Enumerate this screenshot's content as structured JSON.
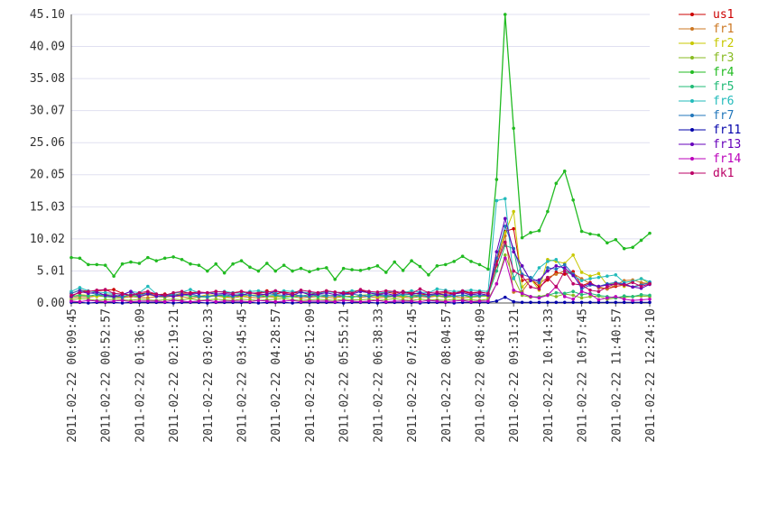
{
  "chart_data": {
    "type": "line",
    "categories": [
      "2011-02-22 00:09:45",
      null,
      null,
      null,
      "2011-02-22 00:52:57",
      null,
      null,
      null,
      "2011-02-22 01:36:09",
      null,
      null,
      null,
      "2011-02-22 02:19:21",
      null,
      null,
      null,
      "2011-02-22 03:02:33",
      null,
      null,
      null,
      "2011-02-22 03:45:45",
      null,
      null,
      null,
      "2011-02-22 04:28:57",
      null,
      null,
      null,
      "2011-02-22 05:12:09",
      null,
      null,
      null,
      "2011-02-22 05:55:21",
      null,
      null,
      null,
      "2011-02-22 06:38:33",
      null,
      null,
      null,
      "2011-02-22 07:21:45",
      null,
      null,
      null,
      "2011-02-22 08:04:57",
      null,
      null,
      null,
      "2011-02-22 08:48:09",
      null,
      null,
      null,
      "2011-02-22 09:31:21",
      null,
      null,
      null,
      "2011-02-22 10:14:33",
      null,
      null,
      null,
      "2011-02-22 10:57:45",
      null,
      null,
      null,
      "2011-02-22 11:40:57",
      null,
      null,
      null,
      "2011-02-22 12:24:10"
    ],
    "ylim": [
      0,
      45.1
    ],
    "yticks": [
      {
        "value": 0,
        "label": "0.00"
      },
      5.01,
      10.02,
      15.03,
      20.05,
      25.06,
      30.07,
      35.08,
      40.09,
      {
        "value": 45.1,
        "label": "45.10"
      }
    ],
    "grid": true,
    "legend": "right",
    "series": [
      {
        "name": "us1",
        "color": "#cc0000",
        "values": [
          1.5,
          2.0,
          1.8,
          1.9,
          2.0,
          2.1,
          1.5,
          1.2,
          1.4,
          1.6,
          1.3,
          1.4,
          1.2,
          1.5,
          1.6,
          1.7,
          1.5,
          1.8,
          1.7,
          1.6,
          1.8,
          1.5,
          1.6,
          1.9,
          1.4,
          1.7,
          1.5,
          1.8,
          1.3,
          1.6,
          1.9,
          1.7,
          1.5,
          1.8,
          2.0,
          1.6,
          1.4,
          1.7,
          1.5,
          1.8,
          1.6,
          1.4,
          1.3,
          1.5,
          1.6,
          1.4,
          1.8,
          1.5,
          1.7,
          1.5,
          6.5,
          11.2,
          11.6,
          3.5,
          3.8,
          2.5,
          3.6,
          4.8,
          4.5,
          4.9,
          2.7,
          3.2,
          2.4,
          2.2,
          2.6,
          2.8,
          2.5,
          2.9,
          3.1
        ]
      },
      {
        "name": "fr1",
        "color": "#cc7722",
        "values": [
          0.8,
          1.0,
          0.9,
          1.1,
          1.0,
          0.9,
          0.8,
          1.0,
          0.9,
          0.8,
          1.0,
          0.9,
          1.1,
          1.0,
          0.8,
          0.9,
          1.0,
          1.1,
          0.9,
          0.8,
          1.0,
          0.9,
          0.8,
          1.0,
          0.9,
          1.1,
          1.0,
          0.8,
          0.9,
          1.0,
          0.9,
          0.8,
          1.0,
          1.1,
          0.9,
          1.0,
          0.8,
          0.9,
          1.0,
          0.9,
          0.8,
          1.0,
          0.9,
          1.1,
          0.9,
          1.0,
          0.8,
          0.9,
          1.0,
          1.2,
          5.8,
          10.5,
          1.7,
          1.8,
          3.6,
          3.0,
          4.0,
          4.5,
          5.0,
          4.6,
          3.8,
          3.0,
          2.5,
          2.2,
          2.8,
          3.5,
          3.6,
          3.2,
          3.0
        ]
      },
      {
        "name": "fr2",
        "color": "#c8c800",
        "values": [
          1.0,
          1.3,
          1.2,
          1.0,
          1.4,
          1.1,
          0.9,
          1.2,
          1.0,
          1.3,
          1.1,
          1.0,
          1.2,
          1.4,
          1.1,
          1.0,
          1.3,
          1.2,
          0.9,
          1.1,
          1.0,
          1.2,
          1.3,
          1.1,
          1.0,
          0.9,
          1.2,
          1.1,
          1.0,
          1.3,
          1.2,
          1.0,
          1.1,
          0.9,
          1.2,
          1.3,
          1.0,
          1.1,
          1.2,
          1.0,
          1.1,
          1.3,
          1.0,
          1.2,
          1.1,
          1.0,
          1.2,
          0.9,
          1.1,
          1.0,
          7.0,
          11.0,
          14.3,
          2.5,
          3.8,
          2.0,
          6.8,
          6.5,
          6.2,
          7.5,
          4.8,
          4.2,
          4.6,
          2.8,
          3.2,
          2.6,
          3.4,
          3.8,
          3.0
        ]
      },
      {
        "name": "fr3",
        "color": "#88bb22",
        "values": [
          0.5,
          0.7,
          0.6,
          0.4,
          0.5,
          0.6,
          0.5,
          0.4,
          0.6,
          0.5,
          0.4,
          0.5,
          0.6,
          0.5,
          0.7,
          0.4,
          0.5,
          0.6,
          0.5,
          0.4,
          0.6,
          0.5,
          0.4,
          0.5,
          0.6,
          0.7,
          0.5,
          0.4,
          0.5,
          0.6,
          0.5,
          0.4,
          0.6,
          0.5,
          0.5,
          0.6,
          0.4,
          0.5,
          0.7,
          0.5,
          0.4,
          0.6,
          0.5,
          0.5,
          0.4,
          0.6,
          0.5,
          0.5,
          0.4,
          0.6,
          3.0,
          7.5,
          4.0,
          1.2,
          0.9,
          1.0,
          1.3,
          1.0,
          1.4,
          1.2,
          0.8,
          1.0,
          1.1,
          0.6,
          0.8,
          0.9,
          1.0,
          1.1,
          1.0
        ]
      },
      {
        "name": "fr4",
        "color": "#22bb22",
        "values": [
          7.1,
          7.0,
          6.0,
          6.0,
          5.9,
          4.2,
          6.1,
          6.4,
          6.2,
          7.1,
          6.6,
          7.0,
          7.2,
          6.8,
          6.1,
          5.9,
          5.0,
          6.1,
          4.7,
          6.1,
          6.6,
          5.6,
          5.0,
          6.2,
          5.0,
          5.9,
          5.0,
          5.4,
          4.9,
          5.3,
          5.5,
          3.7,
          5.4,
          5.2,
          5.1,
          5.4,
          5.8,
          4.8,
          6.4,
          5.1,
          6.6,
          5.7,
          4.4,
          5.8,
          6.0,
          6.5,
          7.3,
          6.5,
          6.0,
          5.3,
          19.3,
          45.1,
          27.3,
          10.2,
          11.0,
          11.3,
          14.3,
          18.7,
          20.6,
          16.1,
          11.2,
          10.8,
          10.6,
          9.4,
          9.9,
          8.5,
          8.7,
          9.8,
          10.9
        ]
      },
      {
        "name": "fr5",
        "color": "#22bb77",
        "values": [
          1.0,
          1.2,
          1.1,
          1.3,
          1.0,
          0.9,
          1.1,
          1.2,
          1.0,
          1.4,
          1.1,
          1.0,
          1.2,
          1.3,
          1.1,
          1.0,
          0.9,
          1.2,
          1.1,
          1.0,
          1.2,
          1.3,
          1.0,
          1.1,
          1.2,
          0.9,
          1.0,
          1.1,
          1.3,
          1.0,
          1.1,
          1.2,
          1.0,
          0.9,
          1.1,
          1.3,
          1.2,
          1.0,
          1.1,
          1.2,
          1.0,
          1.1,
          1.3,
          1.2,
          1.0,
          1.1,
          1.2,
          1.0,
          1.1,
          1.2,
          5.0,
          9.0,
          8.5,
          1.5,
          1.0,
          0.9,
          1.2,
          1.6,
          1.5,
          1.8,
          1.3,
          1.5,
          1.2,
          1.0,
          0.8,
          1.1,
          1.0,
          1.3,
          1.2
        ]
      },
      {
        "name": "fr6",
        "color": "#22bbbb",
        "values": [
          1.8,
          2.4,
          1.9,
          1.7,
          1.6,
          1.5,
          1.3,
          1.8,
          1.6,
          2.6,
          1.4,
          1.2,
          1.5,
          1.7,
          2.1,
          1.6,
          1.5,
          1.7,
          1.8,
          1.6,
          1.5,
          1.8,
          1.9,
          1.7,
          1.6,
          1.9,
          1.8,
          1.7,
          1.6,
          1.5,
          1.8,
          1.6,
          1.7,
          1.9,
          1.8,
          1.6,
          1.5,
          1.7,
          1.8,
          1.6,
          1.9,
          1.7,
          1.6,
          2.2,
          2.0,
          1.8,
          1.9,
          2.0,
          1.9,
          1.8,
          16.0,
          16.3,
          3.8,
          5.8,
          3.5,
          5.5,
          6.5,
          6.8,
          5.0,
          4.3,
          3.5,
          3.8,
          4.0,
          4.2,
          4.4,
          3.2,
          3.4,
          3.8,
          3.3
        ]
      },
      {
        "name": "fr7",
        "color": "#2277bb",
        "values": [
          1.5,
          2.0,
          1.6,
          1.4,
          1.2,
          1.3,
          0.9,
          1.4,
          1.2,
          1.6,
          1.0,
          1.1,
          1.3,
          1.2,
          1.4,
          1.1,
          1.0,
          1.2,
          1.3,
          1.1,
          1.4,
          1.2,
          1.1,
          1.5,
          1.3,
          1.2,
          1.4,
          1.1,
          1.0,
          1.3,
          1.2,
          1.1,
          1.3,
          1.4,
          1.2,
          1.0,
          1.3,
          1.2,
          1.1,
          1.4,
          1.3,
          1.2,
          1.0,
          1.4,
          1.3,
          1.1,
          1.2,
          1.3,
          1.2,
          1.3,
          7.0,
          12.0,
          8.5,
          4.5,
          4.0,
          3.2,
          5.5,
          5.3,
          6.0,
          4.5,
          2.2,
          2.8,
          2.6,
          3.0,
          3.2,
          3.0,
          2.5,
          2.8,
          3.2
        ]
      },
      {
        "name": "fr11",
        "color": "#0000aa",
        "values": [
          0.1,
          0.1,
          0.0,
          0.1,
          0.1,
          0.1,
          0.0,
          0.1,
          0.1,
          0.1,
          0.1,
          0.1,
          0.0,
          0.1,
          0.1,
          0.1,
          0.0,
          0.1,
          0.1,
          0.1,
          0.1,
          0.1,
          0.0,
          0.1,
          0.1,
          0.1,
          0.0,
          0.1,
          0.1,
          0.1,
          0.1,
          0.1,
          0.0,
          0.1,
          0.1,
          0.1,
          0.0,
          0.1,
          0.1,
          0.1,
          0.1,
          0.0,
          0.1,
          0.1,
          0.1,
          0.0,
          0.1,
          0.1,
          0.1,
          0.1,
          0.3,
          0.9,
          0.2,
          0.1,
          0.1,
          0.1,
          0.1,
          0.1,
          0.1,
          0.1,
          0.1,
          0.1,
          0.1,
          0.1,
          0.1,
          0.1,
          0.1,
          0.1,
          0.1
        ]
      },
      {
        "name": "fr13",
        "color": "#6600bb",
        "values": [
          1.0,
          1.8,
          1.5,
          1.7,
          1.2,
          1.0,
          1.3,
          1.8,
          1.0,
          1.4,
          1.1,
          1.2,
          1.0,
          1.3,
          1.4,
          1.5,
          1.6,
          1.4,
          1.5,
          1.3,
          1.2,
          1.6,
          1.4,
          1.3,
          1.9,
          1.5,
          1.2,
          1.7,
          1.3,
          1.4,
          1.6,
          1.3,
          1.5,
          1.4,
          1.8,
          1.6,
          1.3,
          1.5,
          1.2,
          1.7,
          1.4,
          1.6,
          1.3,
          1.5,
          1.2,
          1.4,
          1.6,
          1.3,
          1.5,
          1.2,
          8.0,
          13.2,
          8.0,
          5.8,
          3.5,
          3.6,
          5.0,
          5.8,
          5.5,
          4.3,
          2.5,
          3.0,
          2.6,
          2.8,
          3.0,
          2.9,
          2.5,
          2.3,
          2.9
        ]
      },
      {
        "name": "fr14",
        "color": "#bb00bb",
        "values": [
          0.3,
          0.2,
          0.4,
          0.3,
          0.2,
          0.3,
          0.4,
          0.2,
          0.3,
          0.3,
          0.3,
          0.2,
          0.4,
          0.3,
          0.2,
          0.3,
          0.4,
          0.2,
          0.3,
          0.3,
          0.3,
          0.2,
          0.4,
          0.3,
          0.2,
          0.3,
          0.4,
          0.2,
          0.3,
          0.3,
          0.3,
          0.2,
          0.4,
          0.3,
          0.2,
          0.3,
          0.4,
          0.2,
          0.3,
          0.3,
          0.3,
          0.2,
          0.4,
          0.3,
          0.2,
          0.3,
          0.4,
          0.2,
          0.3,
          0.3,
          3.0,
          7.0,
          2.0,
          1.5,
          1.0,
          0.8,
          1.2,
          2.6,
          1.0,
          0.6,
          1.8,
          1.4,
          0.5,
          0.8,
          1.0,
          0.6,
          0.4,
          0.5,
          0.6
        ]
      },
      {
        "name": "dk1",
        "color": "#bb0066",
        "values": [
          1.2,
          1.6,
          1.8,
          2.0,
          2.1,
          1.5,
          1.4,
          1.2,
          1.6,
          1.8,
          1.4,
          1.2,
          1.6,
          1.8,
          1.5,
          1.7,
          1.6,
          1.8,
          1.7,
          1.5,
          1.8,
          1.6,
          1.5,
          1.7,
          1.9,
          1.6,
          1.5,
          2.0,
          1.8,
          1.6,
          1.9,
          1.7,
          1.6,
          1.5,
          2.1,
          1.8,
          1.7,
          1.9,
          1.8,
          1.6,
          1.5,
          2.2,
          1.6,
          1.7,
          1.8,
          1.5,
          1.9,
          1.6,
          1.7,
          1.5,
          6.0,
          9.5,
          5.0,
          4.2,
          2.5,
          2.2,
          4.0,
          2.5,
          5.0,
          3.0,
          2.8,
          2.0,
          1.8,
          2.5,
          3.0,
          2.8,
          3.2,
          2.6,
          3.0
        ]
      }
    ]
  }
}
